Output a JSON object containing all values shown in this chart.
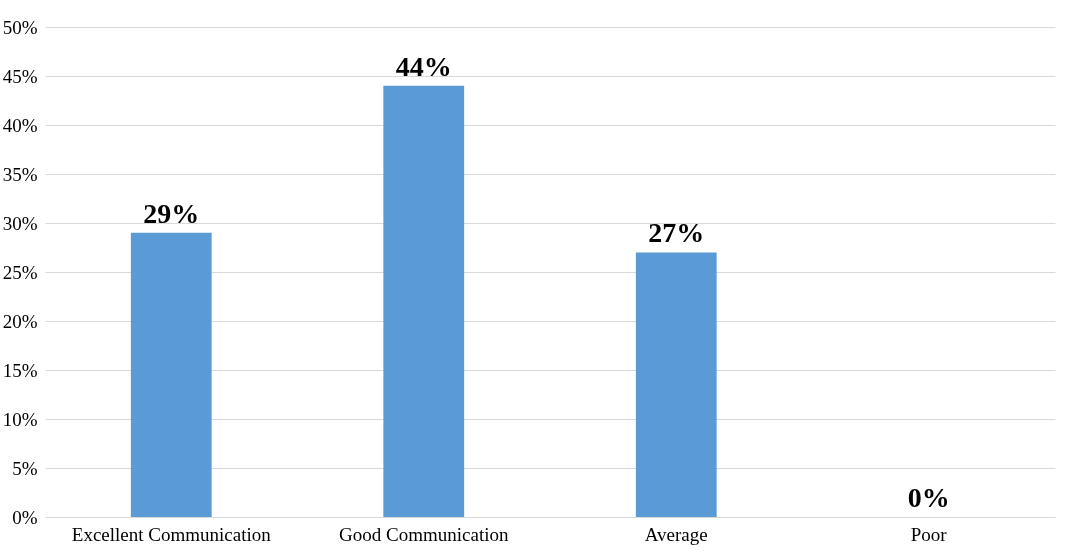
{
  "chart_data": {
    "type": "bar",
    "categories": [
      "Excellent Communication",
      "Good Communication",
      "Average",
      "Poor"
    ],
    "values": [
      29,
      44,
      27,
      0
    ],
    "value_labels": [
      "29%",
      "44%",
      "27%",
      "0%"
    ],
    "color": "#5b9bd5",
    "ylim": [
      0,
      50
    ],
    "yticks": [
      {
        "value": 0,
        "label": "0%"
      },
      {
        "value": 5,
        "label": "5%"
      },
      {
        "value": 10,
        "label": "10%"
      },
      {
        "value": 15,
        "label": "15%"
      },
      {
        "value": 20,
        "label": "20%"
      },
      {
        "value": 25,
        "label": "25%"
      },
      {
        "value": 30,
        "label": "30%"
      },
      {
        "value": 35,
        "label": "35%"
      },
      {
        "value": 40,
        "label": "40%"
      },
      {
        "value": 45,
        "label": "45%"
      },
      {
        "value": 50,
        "label": "50%"
      }
    ],
    "grid": "y"
  }
}
